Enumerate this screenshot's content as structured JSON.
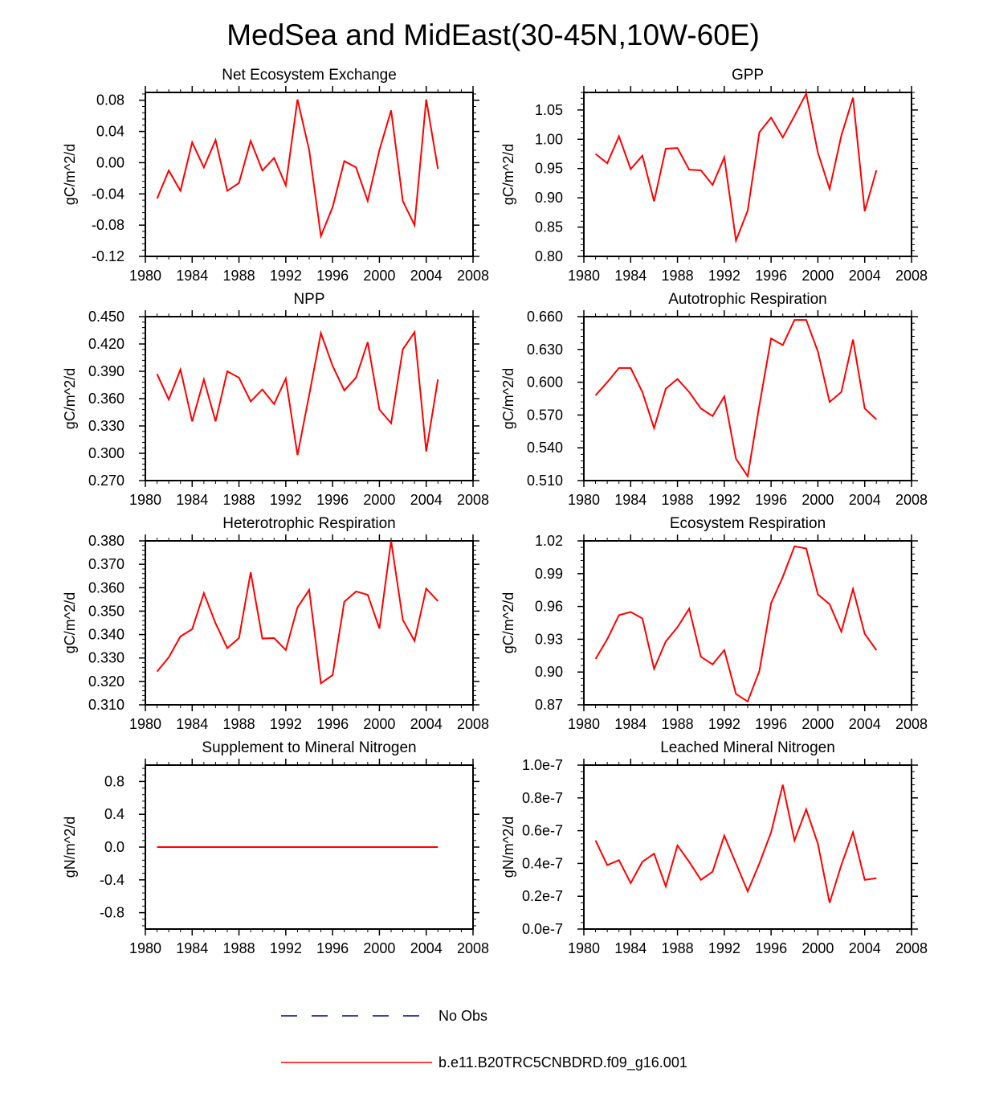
{
  "figure_title": "MedSea and MidEast(30-45N,10W-60E)",
  "colors": {
    "model_line": "#ff0000",
    "obs_line": "#00008b",
    "axis": "#000000"
  },
  "legend": {
    "obs_label": "No Obs",
    "model_label": "b.e11.B20TRC5CNBDRD.f09_g16.001"
  },
  "chart_data": [
    {
      "type": "line",
      "title": "Net Ecosystem Exchange",
      "ylabel": "gC/m^2/d",
      "xlabel": "",
      "xlim": [
        1980,
        2008
      ],
      "ylim": [
        -0.12,
        0.09
      ],
      "x_ticks": [
        1980,
        1984,
        1988,
        1992,
        1996,
        2000,
        2004,
        2008
      ],
      "y_ticks": [
        -0.12,
        -0.08,
        -0.04,
        0.0,
        0.04,
        0.08
      ],
      "y_tick_labels": [
        "-0.12",
        "-0.08",
        "-0.04",
        "0.00",
        "0.04",
        "0.08"
      ],
      "series": [
        {
          "name": "b.e11.B20TRC5CNBDRD.f09_g16.001",
          "x": [
            1981,
            1982,
            1983,
            1984,
            1985,
            1986,
            1987,
            1988,
            1989,
            1990,
            1991,
            1992,
            1993,
            1994,
            1995,
            1996,
            1997,
            1998,
            1999,
            2000,
            2001,
            2002,
            2003,
            2004,
            2005
          ],
          "values": [
            -0.046,
            -0.01,
            -0.036,
            0.026,
            -0.006,
            0.029,
            -0.036,
            -0.026,
            0.028,
            -0.01,
            0.006,
            -0.029,
            0.081,
            0.016,
            -0.094,
            -0.057,
            0.002,
            -0.006,
            -0.049,
            0.016,
            0.067,
            -0.049,
            -0.08,
            0.081,
            -0.008
          ]
        }
      ]
    },
    {
      "type": "line",
      "title": "GPP",
      "ylabel": "gC/m^2/d",
      "xlabel": "",
      "xlim": [
        1980,
        2008
      ],
      "ylim": [
        0.8,
        1.08
      ],
      "x_ticks": [
        1980,
        1984,
        1988,
        1992,
        1996,
        2000,
        2004,
        2008
      ],
      "y_ticks": [
        0.8,
        0.85,
        0.9,
        0.95,
        1.0,
        1.05
      ],
      "y_tick_labels": [
        "0.80",
        "0.85",
        "0.90",
        "0.95",
        "1.00",
        "1.05"
      ],
      "series": [
        {
          "name": "b.e11.B20TRC5CNBDRD.f09_g16.001",
          "x": [
            1981,
            1982,
            1983,
            1984,
            1985,
            1986,
            1987,
            1988,
            1989,
            1990,
            1991,
            1992,
            1993,
            1994,
            1995,
            1996,
            1997,
            1998,
            1999,
            2000,
            2001,
            2002,
            2003,
            2004,
            2005
          ],
          "values": [
            0.975,
            0.959,
            1.005,
            0.949,
            0.972,
            0.894,
            0.984,
            0.985,
            0.948,
            0.947,
            0.922,
            0.969,
            0.827,
            0.878,
            1.012,
            1.037,
            1.003,
            1.04,
            1.078,
            0.977,
            0.915,
            1.006,
            1.071,
            0.877,
            0.947
          ]
        }
      ]
    },
    {
      "type": "line",
      "title": "NPP",
      "ylabel": "gC/m^2/d",
      "xlabel": "",
      "xlim": [
        1980,
        2008
      ],
      "ylim": [
        0.27,
        0.45
      ],
      "x_ticks": [
        1980,
        1984,
        1988,
        1992,
        1996,
        2000,
        2004,
        2008
      ],
      "y_ticks": [
        0.27,
        0.3,
        0.33,
        0.36,
        0.39,
        0.42,
        0.45
      ],
      "y_tick_labels": [
        "0.270",
        "0.300",
        "0.330",
        "0.360",
        "0.390",
        "0.420",
        "0.450"
      ],
      "series": [
        {
          "name": "b.e11.B20TRC5CNBDRD.f09_g16.001",
          "x": [
            1981,
            1982,
            1983,
            1984,
            1985,
            1986,
            1987,
            1988,
            1989,
            1990,
            1991,
            1992,
            1993,
            1994,
            1995,
            1996,
            1997,
            1998,
            1999,
            2000,
            2001,
            2002,
            2003,
            2004,
            2005
          ],
          "values": [
            0.387,
            0.359,
            0.392,
            0.335,
            0.381,
            0.335,
            0.39,
            0.383,
            0.357,
            0.37,
            0.354,
            0.382,
            0.298,
            0.364,
            0.432,
            0.396,
            0.369,
            0.383,
            0.422,
            0.348,
            0.333,
            0.414,
            0.433,
            0.302,
            0.381
          ]
        }
      ]
    },
    {
      "type": "line",
      "title": "Autotrophic Respiration",
      "ylabel": "gC/m^2/d",
      "xlabel": "",
      "xlim": [
        1980,
        2008
      ],
      "ylim": [
        0.51,
        0.66
      ],
      "x_ticks": [
        1980,
        1984,
        1988,
        1992,
        1996,
        2000,
        2004,
        2008
      ],
      "y_ticks": [
        0.51,
        0.54,
        0.57,
        0.6,
        0.63,
        0.66
      ],
      "y_tick_labels": [
        "0.510",
        "0.540",
        "0.570",
        "0.600",
        "0.630",
        "0.660"
      ],
      "series": [
        {
          "name": "b.e11.B20TRC5CNBDRD.f09_g16.001",
          "x": [
            1981,
            1982,
            1983,
            1984,
            1985,
            1986,
            1987,
            1988,
            1989,
            1990,
            1991,
            1992,
            1993,
            1994,
            1995,
            1996,
            1997,
            1998,
            1999,
            2000,
            2001,
            2002,
            2003,
            2004,
            2005
          ],
          "values": [
            0.588,
            0.6,
            0.613,
            0.613,
            0.591,
            0.558,
            0.594,
            0.603,
            0.591,
            0.576,
            0.569,
            0.587,
            0.53,
            0.514,
            0.579,
            0.64,
            0.634,
            0.657,
            0.657,
            0.628,
            0.582,
            0.591,
            0.639,
            0.576,
            0.566
          ]
        }
      ]
    },
    {
      "type": "line",
      "title": "Heterotrophic Respiration",
      "ylabel": "gC/m^2/d",
      "xlabel": "",
      "xlim": [
        1980,
        2008
      ],
      "ylim": [
        0.31,
        0.38
      ],
      "x_ticks": [
        1980,
        1984,
        1988,
        1992,
        1996,
        2000,
        2004,
        2008
      ],
      "y_ticks": [
        0.31,
        0.32,
        0.33,
        0.34,
        0.35,
        0.36,
        0.37,
        0.38
      ],
      "y_tick_labels": [
        "0.310",
        "0.320",
        "0.330",
        "0.340",
        "0.350",
        "0.360",
        "0.370",
        "0.380"
      ],
      "series": [
        {
          "name": "b.e11.B20TRC5CNBDRD.f09_g16.001",
          "x": [
            1981,
            1982,
            1983,
            1984,
            1985,
            1986,
            1987,
            1988,
            1989,
            1990,
            1991,
            1992,
            1993,
            1994,
            1995,
            1996,
            1997,
            1998,
            1999,
            2000,
            2001,
            2002,
            2003,
            2004,
            2005
          ],
          "values": [
            0.3242,
            0.3303,
            0.3392,
            0.3423,
            0.3577,
            0.3448,
            0.3342,
            0.3385,
            0.3666,
            0.3383,
            0.3385,
            0.3334,
            0.3516,
            0.3591,
            0.3192,
            0.3227,
            0.354,
            0.3584,
            0.357,
            0.3426,
            0.38,
            0.3463,
            0.3373,
            0.3596,
            0.3543
          ]
        }
      ]
    },
    {
      "type": "line",
      "title": "Ecosystem Respiration",
      "ylabel": "gC/m^2/d",
      "xlabel": "",
      "xlim": [
        1980,
        2008
      ],
      "ylim": [
        0.87,
        1.02
      ],
      "x_ticks": [
        1980,
        1984,
        1988,
        1992,
        1996,
        2000,
        2004,
        2008
      ],
      "y_ticks": [
        0.87,
        0.9,
        0.93,
        0.96,
        0.99,
        1.02
      ],
      "y_tick_labels": [
        "0.87",
        "0.90",
        "0.93",
        "0.96",
        "0.99",
        "1.02"
      ],
      "series": [
        {
          "name": "b.e11.B20TRC5CNBDRD.f09_g16.001",
          "x": [
            1981,
            1982,
            1983,
            1984,
            1985,
            1986,
            1987,
            1988,
            1989,
            1990,
            1991,
            1992,
            1993,
            1994,
            1995,
            1996,
            1997,
            1998,
            1999,
            2000,
            2001,
            2002,
            2003,
            2004,
            2005
          ],
          "values": [
            0.912,
            0.93,
            0.952,
            0.955,
            0.949,
            0.903,
            0.928,
            0.941,
            0.958,
            0.914,
            0.907,
            0.92,
            0.88,
            0.873,
            0.901,
            0.963,
            0.987,
            1.015,
            1.013,
            0.971,
            0.962,
            0.937,
            0.976,
            0.935,
            0.92
          ]
        }
      ]
    },
    {
      "type": "line",
      "title": "Supplement to Mineral Nitrogen",
      "ylabel": "gN/m^2/d",
      "xlabel": "",
      "xlim": [
        1980,
        2008
      ],
      "ylim": [
        -1.0,
        1.0
      ],
      "x_ticks": [
        1980,
        1984,
        1988,
        1992,
        1996,
        2000,
        2004,
        2008
      ],
      "y_ticks": [
        -0.8,
        -0.4,
        0.0,
        0.4,
        0.8
      ],
      "y_tick_labels": [
        "-0.8",
        "-0.4",
        "0.0",
        "0.4",
        "0.8"
      ],
      "series": [
        {
          "name": "b.e11.B20TRC5CNBDRD.f09_g16.001",
          "x": [
            1981,
            1982,
            1983,
            1984,
            1985,
            1986,
            1987,
            1988,
            1989,
            1990,
            1991,
            1992,
            1993,
            1994,
            1995,
            1996,
            1997,
            1998,
            1999,
            2000,
            2001,
            2002,
            2003,
            2004,
            2005
          ],
          "values": [
            0,
            0,
            0,
            0,
            0,
            0,
            0,
            0,
            0,
            0,
            0,
            0,
            0,
            0,
            0,
            0,
            0,
            0,
            0,
            0,
            0,
            0,
            0,
            0,
            0
          ]
        }
      ]
    },
    {
      "type": "line",
      "title": "Leached Mineral Nitrogen",
      "ylabel": "gN/m^2/d",
      "xlabel": "",
      "xlim": [
        1980,
        2008
      ],
      "ylim": [
        0.0,
        1e-07
      ],
      "x_ticks": [
        1980,
        1984,
        1988,
        1992,
        1996,
        2000,
        2004,
        2008
      ],
      "y_ticks": [
        0.0,
        2e-08,
        4e-08,
        6e-08,
        8e-08,
        1e-07
      ],
      "y_tick_labels": [
        "0.0e-7",
        "0.2e-7",
        "0.4e-7",
        "0.6e-7",
        "0.8e-7",
        "1.0e-7"
      ],
      "series": [
        {
          "name": "b.e11.B20TRC5CNBDRD.f09_g16.001",
          "x": [
            1981,
            1982,
            1983,
            1984,
            1985,
            1986,
            1987,
            1988,
            1989,
            1990,
            1991,
            1992,
            1993,
            1994,
            1995,
            1996,
            1997,
            1998,
            1999,
            2000,
            2001,
            2002,
            2003,
            2004,
            2005
          ],
          "values": [
            5.4e-08,
            3.9e-08,
            4.2e-08,
            2.8e-08,
            4.1e-08,
            4.6e-08,
            2.6e-08,
            5.1e-08,
            4.1e-08,
            3e-08,
            3.5e-08,
            5.7e-08,
            4e-08,
            2.3e-08,
            4e-08,
            5.9e-08,
            8.8e-08,
            5.4e-08,
            7.3e-08,
            5.2e-08,
            1.6e-08,
            3.9e-08,
            5.9e-08,
            3e-08,
            3.1e-08
          ]
        }
      ]
    }
  ]
}
